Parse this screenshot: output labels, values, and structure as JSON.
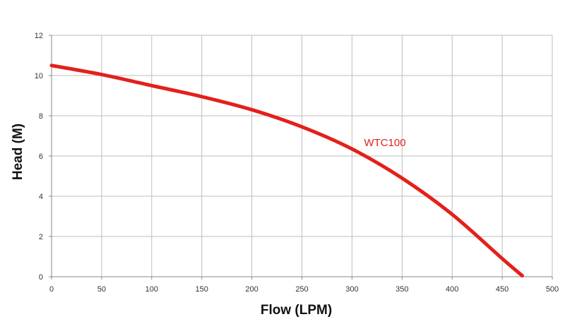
{
  "chart_data": {
    "type": "line",
    "title": "",
    "xlabel": "Flow (LPM)",
    "ylabel": "Head (M)",
    "xlim": [
      0,
      500
    ],
    "ylim": [
      0,
      12
    ],
    "x_ticks": [
      0,
      50,
      100,
      150,
      200,
      250,
      300,
      350,
      400,
      450,
      500
    ],
    "y_ticks": [
      0,
      2,
      4,
      6,
      8,
      10,
      12
    ],
    "grid": true,
    "series": [
      {
        "name": "WTC100",
        "color": "#e3201b",
        "x": [
          0,
          50,
          100,
          150,
          200,
          250,
          300,
          350,
          400,
          450,
          470
        ],
        "y": [
          10.5,
          10.05,
          9.5,
          8.95,
          8.3,
          7.45,
          6.35,
          4.9,
          3.1,
          0.9,
          0.05
        ]
      }
    ]
  }
}
